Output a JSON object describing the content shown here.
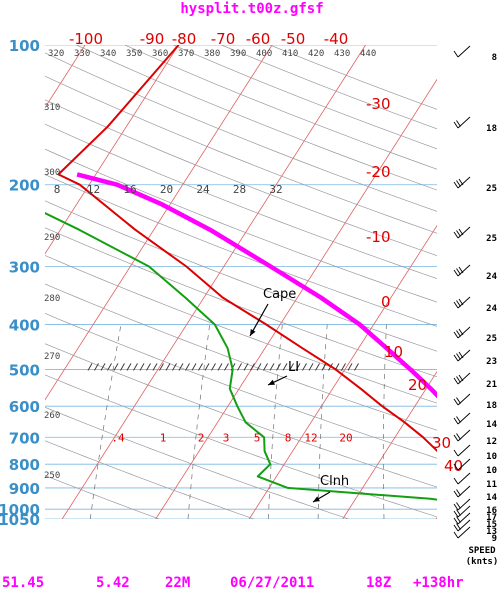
{
  "title": "hysplit.t00z.gfsf",
  "colors": {
    "title": "#ff00ff",
    "pressure_labels": "#3a8fc8",
    "temp_labels": "#dd0000",
    "isotherm": "#e06060",
    "dry_adiabat": "#9a9aa0",
    "mixing_ratio": "#707070",
    "isobar": "#7ab8e0",
    "temperature": "#dd0000",
    "dewpoint": "#12a012",
    "parcel": "#ff00ff",
    "footer": "#ff00ff",
    "barb": "#000000"
  },
  "chart_data": {
    "type": "line",
    "subtype": "skew-t log-p",
    "title": "hysplit.t00z.gfsf",
    "y_axis": {
      "scale": "log",
      "range": [
        1050,
        100
      ],
      "ticks": [
        100,
        200,
        300,
        400,
        500,
        600,
        700,
        800,
        900,
        1000,
        1050
      ]
    },
    "x_axis": {
      "range": [
        -40,
        40
      ],
      "ticks_top": [
        -100,
        -90,
        -80,
        -70,
        -60,
        -50,
        -40
      ]
    },
    "skewed_temp_labels": [
      -30,
      -20,
      -10,
      0,
      10,
      20,
      30,
      40
    ],
    "theta_labels_top": [
      320,
      330,
      340,
      350,
      360,
      370,
      380,
      390,
      400,
      410,
      420,
      430,
      440
    ],
    "theta_labels_left": [
      310,
      300,
      290,
      280,
      270,
      260,
      250
    ],
    "upper_temp_scale": [
      8,
      12,
      16,
      20,
      24,
      28,
      32
    ],
    "mixing_ratio_labels": [
      ".4",
      "1",
      "2",
      "3",
      "5",
      "8",
      "12",
      "20"
    ],
    "lfc_hatch_pressure": 500,
    "series": [
      {
        "name": "temperature",
        "points": [
          [
            1000,
            16.5
          ],
          [
            975,
            15
          ],
          [
            950,
            14
          ],
          [
            925,
            12.8
          ],
          [
            900,
            12
          ],
          [
            850,
            10
          ],
          [
            800,
            7.8
          ],
          [
            750,
            5.5
          ],
          [
            700,
            3
          ],
          [
            650,
            0
          ],
          [
            600,
            -3.5
          ],
          [
            550,
            -7
          ],
          [
            500,
            -11
          ],
          [
            450,
            -16
          ],
          [
            400,
            -21.5
          ],
          [
            350,
            -28
          ],
          [
            300,
            -34
          ],
          [
            250,
            -42
          ],
          [
            200,
            -51
          ],
          [
            190,
            -54
          ],
          [
            150,
            -52
          ],
          [
            100,
            -50
          ]
        ]
      },
      {
        "name": "dewpoint",
        "points": [
          [
            1000,
            14.5
          ],
          [
            975,
            13
          ],
          [
            950,
            8
          ],
          [
            925,
            0
          ],
          [
            900,
            -8
          ],
          [
            850,
            -12
          ],
          [
            800,
            -11.5
          ],
          [
            750,
            -13
          ],
          [
            700,
            -14
          ],
          [
            650,
            -17
          ],
          [
            600,
            -19
          ],
          [
            550,
            -21
          ],
          [
            500,
            -22
          ],
          [
            450,
            -24
          ],
          [
            400,
            -27
          ],
          [
            350,
            -32
          ],
          [
            300,
            -38
          ],
          [
            250,
            -48
          ],
          [
            200,
            -61
          ],
          [
            150,
            -69
          ],
          [
            100,
            -76
          ]
        ]
      },
      {
        "name": "parcel",
        "points": [
          [
            1000,
            16.5
          ],
          [
            975,
            15
          ],
          [
            950,
            12.8
          ],
          [
            900,
            12
          ],
          [
            850,
            11.5
          ],
          [
            800,
            11
          ],
          [
            750,
            10
          ],
          [
            700,
            8.5
          ],
          [
            650,
            6
          ],
          [
            600,
            3.5
          ],
          [
            550,
            0.5
          ],
          [
            500,
            -3
          ],
          [
            450,
            -7
          ],
          [
            400,
            -11.5
          ],
          [
            350,
            -17.5
          ],
          [
            300,
            -25
          ],
          [
            250,
            -34
          ],
          [
            220,
            -41
          ],
          [
            200,
            -47
          ],
          [
            190,
            -52
          ]
        ]
      }
    ],
    "annotations": [
      {
        "text": "Cape",
        "pressure": 400
      },
      {
        "text": "LI",
        "pressure": 500
      },
      {
        "text": "Clnh",
        "pressure": 900
      }
    ],
    "wind_barbs": [
      {
        "pressure": 100,
        "speed": 8
      },
      {
        "pressure": 150,
        "speed": 18
      },
      {
        "pressure": 200,
        "speed": 25
      },
      {
        "pressure": 250,
        "speed": 25
      },
      {
        "pressure": 300,
        "speed": 24
      },
      {
        "pressure": 350,
        "speed": 24
      },
      {
        "pressure": 400,
        "speed": 25
      },
      {
        "pressure": 450,
        "speed": 23
      },
      {
        "pressure": 500,
        "speed": 21
      },
      {
        "pressure": 550,
        "speed": 18
      },
      {
        "pressure": 600,
        "speed": 14
      },
      {
        "pressure": 650,
        "speed": 12
      },
      {
        "pressure": 700,
        "speed": 10
      },
      {
        "pressure": 750,
        "speed": 10
      },
      {
        "pressure": 800,
        "speed": 11
      },
      {
        "pressure": 850,
        "speed": 14
      },
      {
        "pressure": 900,
        "speed": 16
      },
      {
        "pressure": 925,
        "speed": 17
      },
      {
        "pressure": 950,
        "speed": 15
      },
      {
        "pressure": 975,
        "speed": 13
      },
      {
        "pressure": 1000,
        "speed": 9
      }
    ],
    "speed_label": "SPEED",
    "speed_unit": "(knts)"
  },
  "footer": {
    "lat": "51.45",
    "lon": "5.42",
    "height": "22M",
    "date": "06/27/2011",
    "hour": "18Z",
    "forecast": "+138hr"
  }
}
